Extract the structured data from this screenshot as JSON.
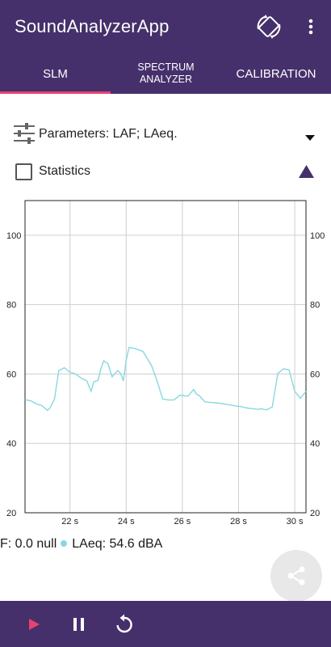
{
  "app": {
    "title": "SoundAnalyzerApp"
  },
  "toolbar": {
    "rotate_icon": "screen-rotation-icon",
    "more_icon": "more-vert-icon"
  },
  "tabs": [
    {
      "label": "SLM",
      "active": true
    },
    {
      "label": "SPECTRUM ANALYZER",
      "line1": "SPECTRUM",
      "line2": "ANALYZER",
      "active": false
    },
    {
      "label": "CALIBRATION",
      "active": false
    }
  ],
  "parameters": {
    "label": "Parameters: LAF; LAeq.",
    "icon": "tune-icon",
    "dropdown_icon": "arrow-drop-down-icon"
  },
  "statistics": {
    "label": "Statistics",
    "checked": false,
    "toggle_icon": "triangle-up-icon"
  },
  "chart_data": {
    "type": "line",
    "x_ticks": [
      "22 s",
      "24 s",
      "26 s",
      "28 s",
      "30 s"
    ],
    "y_ticks": [
      "20",
      "40",
      "60",
      "80",
      "100"
    ],
    "ylim": [
      20,
      110
    ],
    "xlim": [
      20.4,
      30.4
    ],
    "grid": true,
    "series": [
      {
        "name": "LAeq",
        "color": "#86d9e0",
        "x": [
          20.4,
          20.6,
          20.8,
          21.0,
          21.2,
          21.3,
          21.45,
          21.6,
          21.8,
          22.0,
          22.2,
          22.4,
          22.6,
          22.75,
          22.85,
          23.0,
          23.1,
          23.2,
          23.35,
          23.5,
          23.7,
          23.8,
          23.9,
          24.0,
          24.1,
          24.3,
          24.6,
          24.9,
          25.1,
          25.3,
          25.5,
          25.7,
          25.9,
          26.0,
          26.2,
          26.4,
          26.5,
          26.6,
          26.8,
          27.0,
          27.3,
          27.6,
          27.9,
          28.1,
          28.3,
          28.5,
          28.7,
          28.8,
          28.9,
          29.0,
          29.2,
          29.4,
          29.6,
          29.8,
          30.0,
          30.2,
          30.4
        ],
        "y": [
          52.6,
          52.3,
          51.4,
          50.9,
          49.5,
          50.3,
          52.8,
          61.0,
          61.8,
          60.5,
          60.0,
          58.8,
          58.0,
          55.0,
          57.8,
          58.2,
          61.5,
          63.8,
          63.0,
          59.2,
          61.0,
          60.2,
          58.0,
          64.0,
          67.6,
          67.4,
          66.5,
          62.5,
          58.0,
          52.8,
          52.5,
          52.5,
          53.8,
          53.8,
          53.6,
          55.5,
          54.2,
          53.8,
          52.0,
          51.8,
          51.6,
          51.2,
          50.8,
          50.6,
          50.2,
          50.0,
          49.8,
          50.0,
          49.8,
          49.7,
          50.5,
          60.2,
          61.5,
          61.2,
          55.0,
          53.0,
          55.0
        ]
      }
    ]
  },
  "legend": {
    "laf_text": "F: 0.0 null",
    "laeq_text": "LAeq: 54.6 dBA",
    "laeq_color": "#86d9e0"
  },
  "fab": {
    "icon": "share-icon"
  },
  "bottom_bar": {
    "play_icon": "play-icon",
    "pause_icon": "pause-icon",
    "reset_icon": "replay-icon"
  }
}
